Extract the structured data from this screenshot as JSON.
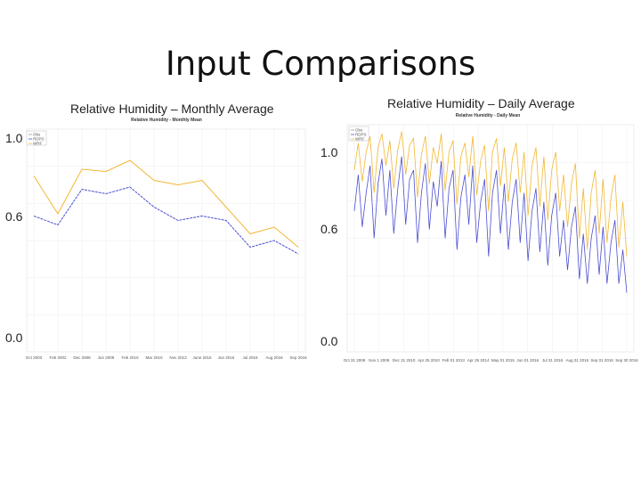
{
  "slide": {
    "title": "Input Comparisons",
    "left_caption": "Relative Humidity – Monthly Average",
    "right_caption": "Relative Humidity – Daily Average"
  },
  "colors": {
    "series_a": "#F2B733",
    "series_b": "#4B4FD0",
    "grid": "#ECECEC"
  },
  "chart_data": [
    {
      "type": "line",
      "title": "Relative Humidity - Monthly Mean",
      "y_tick_labels": [
        "1.0",
        "0.6",
        "0.0"
      ],
      "x_tick_labels": [
        "Oct 2003",
        "Feb 2002",
        "Dec 2008",
        "Jun 2009",
        "Feb 2010",
        "Mar 2010",
        "Nov 2013",
        "June 2016",
        "Jun 2016",
        "Jul 2016",
        "Aug 2016",
        "Sep 2016"
      ],
      "ylim": [
        0,
        1
      ],
      "legend": [
        "Obs",
        "RDPS",
        "WRF"
      ],
      "series": [
        {
          "values": [
            0.79,
            0.62,
            0.82,
            0.81,
            0.86,
            0.77,
            0.75,
            0.77,
            0.65,
            0.53,
            0.56,
            0.47
          ]
        },
        {
          "values": [
            0.61,
            0.57,
            0.73,
            0.71,
            0.74,
            0.65,
            0.59,
            0.61,
            0.59,
            0.47,
            0.5,
            0.44
          ]
        }
      ]
    },
    {
      "type": "line",
      "title": "Relative Humidity - Daily Mean",
      "y_tick_labels": [
        "1.0",
        "0.6",
        "0.0"
      ],
      "x_tick_labels": [
        "Oct 31 2009",
        "Nov 1 2009",
        "Dec 31 2010",
        "Apr 25 2010",
        "Feb 01 2013",
        "Apr 25 2014",
        "May 01 2015",
        "Jun 01 2016",
        "Jul 31 2016",
        "Aug 31 2016",
        "Sep 01 2016",
        "Sep 30 2016"
      ],
      "ylim": [
        0,
        1
      ],
      "legend": [
        "Obs",
        "RDPS",
        "WRF"
      ],
      "series": [
        {
          "values": [
            0.8,
            0.92,
            0.75,
            0.88,
            0.95,
            0.7,
            0.9,
            0.96,
            0.82,
            0.93,
            0.72,
            0.89,
            0.97,
            0.78,
            0.91,
            0.94,
            0.68,
            0.87,
            0.95,
            0.74,
            0.9,
            0.83,
            0.96,
            0.71,
            0.88,
            0.93,
            0.65,
            0.86,
            0.92,
            0.77,
            0.95,
            0.69,
            0.84,
            0.91,
            0.62,
            0.88,
            0.94,
            0.73,
            0.9,
            0.66,
            0.85,
            0.92,
            0.7,
            0.88,
            0.6,
            0.82,
            0.9,
            0.64,
            0.86,
            0.58,
            0.8,
            0.88,
            0.62,
            0.78,
            0.55,
            0.74,
            0.83,
            0.5,
            0.72,
            0.45,
            0.7,
            0.8,
            0.52,
            0.76,
            0.48,
            0.68,
            0.78,
            0.46,
            0.66,
            0.42
          ]
        },
        {
          "values": [
            0.62,
            0.78,
            0.55,
            0.7,
            0.82,
            0.5,
            0.74,
            0.85,
            0.6,
            0.8,
            0.52,
            0.72,
            0.86,
            0.56,
            0.76,
            0.8,
            0.48,
            0.7,
            0.83,
            0.54,
            0.75,
            0.64,
            0.84,
            0.5,
            0.72,
            0.8,
            0.45,
            0.68,
            0.78,
            0.56,
            0.82,
            0.48,
            0.66,
            0.76,
            0.42,
            0.7,
            0.8,
            0.52,
            0.74,
            0.45,
            0.66,
            0.76,
            0.48,
            0.7,
            0.4,
            0.62,
            0.72,
            0.44,
            0.66,
            0.38,
            0.6,
            0.7,
            0.42,
            0.58,
            0.36,
            0.55,
            0.64,
            0.32,
            0.52,
            0.3,
            0.5,
            0.6,
            0.34,
            0.55,
            0.3,
            0.48,
            0.58,
            0.3,
            0.45,
            0.26
          ]
        }
      ]
    }
  ]
}
